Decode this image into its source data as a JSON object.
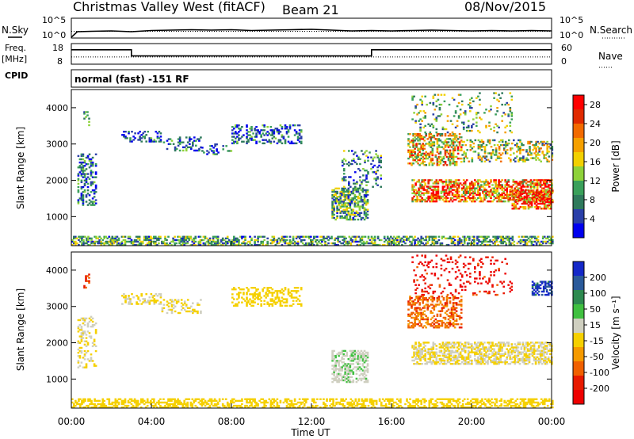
{
  "header": {
    "station": "Christmas Valley West (fitACF)",
    "beam": "Beam 21",
    "date": "08/Nov/2015"
  },
  "left_labels": {
    "nsky": "N.Sky",
    "freq_top": "Freq.",
    "freq_unit": "[MHz]",
    "cpid": "CPID"
  },
  "right_labels": {
    "nsearch": "N.Search",
    "nave": "Nave"
  },
  "cpid_text": "normal (fast) -151 RF",
  "colorbar_power": {
    "label": "Power [dB]",
    "ticks": [
      "4",
      "8",
      "12",
      "16",
      "20",
      "24",
      "28"
    ],
    "colors": [
      "#0000ee",
      "#2a3fa8",
      "#2f7a5c",
      "#3aa05a",
      "#8ed23a",
      "#f2d000",
      "#f5a000",
      "#f26a00",
      "#e02a00",
      "#ff0000"
    ]
  },
  "colorbar_velocity": {
    "label": "Velocity [m s⁻¹]",
    "ticks": [
      "200",
      "100",
      "50",
      "15",
      "-15",
      "-50",
      "-100",
      "-200"
    ],
    "colors": [
      "#1428c8",
      "#2a5a9a",
      "#2e8a50",
      "#40c040",
      "#cfcfc0",
      "#f5d000",
      "#f59a00",
      "#f06000",
      "#e81a00",
      "#ee0000"
    ]
  },
  "chart_data": [
    {
      "type": "line",
      "panel": "noise",
      "series": [
        {
          "name": "N.Sky",
          "style": "solid",
          "x": [
            0,
            0.3,
            1,
            2,
            3,
            4,
            5,
            6,
            7,
            8,
            9,
            10,
            11,
            12,
            13,
            14,
            15,
            16,
            17,
            18,
            19,
            20,
            21,
            22,
            23,
            24
          ],
          "y": [
            0.2,
            1.6,
            1.7,
            1.8,
            1.6,
            1.9,
            2.0,
            2.1,
            2.0,
            2.1,
            1.9,
            2.0,
            2.1,
            2.2,
            2.0,
            1.8,
            1.9,
            1.8,
            1.9,
            2.0,
            1.9,
            1.8,
            1.9,
            1.8,
            1.9,
            1.8
          ]
        },
        {
          "name": "N.Search",
          "style": "dotted",
          "x": [
            0,
            24
          ],
          "y": [
            1.7,
            1.7
          ]
        }
      ],
      "left_ticks": [
        "10^5",
        "10^0"
      ],
      "right_ticks": [
        "10^5",
        "10^0"
      ]
    },
    {
      "type": "line",
      "panel": "frequency",
      "series": [
        {
          "name": "Freq.",
          "style": "solid",
          "x": [
            0,
            3.0,
            3.0,
            15.0,
            15.0,
            24
          ],
          "y": [
            15,
            15,
            12,
            12,
            15,
            15
          ]
        },
        {
          "name": "Nave",
          "style": "dotted",
          "x": [
            0,
            24
          ],
          "y": [
            11.5,
            11.5
          ]
        }
      ],
      "left_ticks": [
        "18",
        "8"
      ],
      "right_ticks": [
        "60",
        "0"
      ]
    },
    {
      "type": "heatmap",
      "panel": "power",
      "xlabel": "",
      "ylabel": "Slant Range [km]",
      "xlim": [
        0,
        24
      ],
      "ylim": [
        200,
        4500
      ],
      "y_ticks": [
        "1000",
        "2000",
        "3000",
        "4000"
      ],
      "regions": [
        {
          "x": [
            0,
            24
          ],
          "y": [
            200,
            450
          ],
          "value": 10,
          "density": 0.55
        },
        {
          "x": [
            0.3,
            1.2
          ],
          "y": [
            1300,
            2700
          ],
          "value": 6,
          "density": 0.35
        },
        {
          "x": [
            0.6,
            0.9
          ],
          "y": [
            3500,
            3900
          ],
          "value": 8,
          "density": 0.3
        },
        {
          "x": [
            2.5,
            4.5
          ],
          "y": [
            3050,
            3350
          ],
          "value": 6,
          "density": 0.35
        },
        {
          "x": [
            4.5,
            6.5
          ],
          "y": [
            2800,
            3200
          ],
          "value": 6,
          "density": 0.3
        },
        {
          "x": [
            6.5,
            8.0
          ],
          "y": [
            2700,
            3000
          ],
          "value": 6,
          "density": 0.25
        },
        {
          "x": [
            8.0,
            11.5
          ],
          "y": [
            3000,
            3500
          ],
          "value": 6,
          "density": 0.35
        },
        {
          "x": [
            13.0,
            14.8
          ],
          "y": [
            900,
            1800
          ],
          "value": 10,
          "density": 0.55
        },
        {
          "x": [
            13.5,
            15.5
          ],
          "y": [
            1800,
            2800
          ],
          "value": 8,
          "density": 0.2
        },
        {
          "x": [
            16.8,
            19.5
          ],
          "y": [
            2400,
            3300
          ],
          "value": 18,
          "density": 0.5
        },
        {
          "x": [
            17.0,
            24.0
          ],
          "y": [
            1400,
            2000
          ],
          "value": 22,
          "density": 0.6
        },
        {
          "x": [
            19.5,
            24.0
          ],
          "y": [
            2500,
            3100
          ],
          "value": 14,
          "density": 0.35
        },
        {
          "x": [
            17.0,
            22.0
          ],
          "y": [
            3300,
            4400
          ],
          "value": 12,
          "density": 0.12
        },
        {
          "x": [
            22.0,
            24.0
          ],
          "y": [
            1200,
            1700
          ],
          "value": 24,
          "density": 0.6
        }
      ]
    },
    {
      "type": "heatmap",
      "panel": "velocity",
      "xlabel": "Time UT",
      "ylabel": "Slant Range [km]",
      "xlim": [
        0,
        24
      ],
      "ylim": [
        200,
        4500
      ],
      "x_ticks": [
        "00:00",
        "04:00",
        "08:00",
        "12:00",
        "16:00",
        "20:00",
        "00:00"
      ],
      "y_ticks": [
        "1000",
        "2000",
        "3000",
        "4000"
      ],
      "regions": [
        {
          "x": [
            0,
            24
          ],
          "y": [
            200,
            450
          ],
          "value": -20,
          "density": 0.5
        },
        {
          "x": [
            0.3,
            1.2
          ],
          "y": [
            1300,
            2700
          ],
          "value": 0,
          "density": 0.3
        },
        {
          "x": [
            0.6,
            0.9
          ],
          "y": [
            3500,
            3900
          ],
          "value": -150,
          "density": 0.3
        },
        {
          "x": [
            2.5,
            4.5
          ],
          "y": [
            3050,
            3350
          ],
          "value": 0,
          "density": 0.35
        },
        {
          "x": [
            4.5,
            6.5
          ],
          "y": [
            2800,
            3200
          ],
          "value": 0,
          "density": 0.3
        },
        {
          "x": [
            8.0,
            11.5
          ],
          "y": [
            3000,
            3500
          ],
          "value": -20,
          "density": 0.35
        },
        {
          "x": [
            13.0,
            14.8
          ],
          "y": [
            900,
            1800
          ],
          "value": 40,
          "density": 0.55
        },
        {
          "x": [
            16.8,
            19.5
          ],
          "y": [
            2400,
            3300
          ],
          "value": -120,
          "density": 0.45
        },
        {
          "x": [
            17.0,
            24.0
          ],
          "y": [
            1400,
            2000
          ],
          "value": 0,
          "density": 0.6
        },
        {
          "x": [
            17.0,
            22.0
          ],
          "y": [
            3300,
            4400
          ],
          "value": -200,
          "density": 0.12
        },
        {
          "x": [
            23.0,
            24.0
          ],
          "y": [
            3300,
            3700
          ],
          "value": 200,
          "density": 0.6
        }
      ]
    }
  ]
}
